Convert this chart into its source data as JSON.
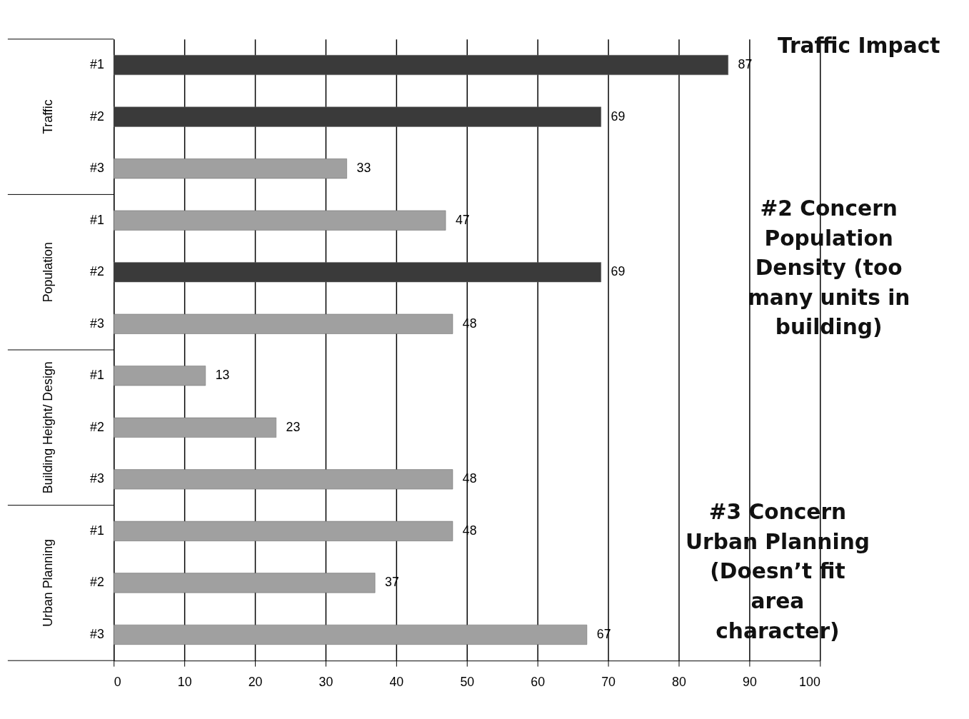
{
  "chart_data": {
    "type": "bar",
    "orientation": "horizontal",
    "categories": [
      "#1",
      "#2",
      "#3",
      "#1",
      "#2",
      "#3",
      "#1",
      "#2",
      "#3",
      "#1",
      "#2",
      "#3"
    ],
    "values": [
      87,
      69,
      33,
      47,
      69,
      48,
      13,
      23,
      48,
      48,
      37,
      67
    ],
    "colors": [
      "#3a3a3a",
      "#3a3a3a",
      "#a0a0a0",
      "#a0a0a0",
      "#3a3a3a",
      "#a0a0a0",
      "#a0a0a0",
      "#a0a0a0",
      "#a0a0a0",
      "#a0a0a0",
      "#a0a0a0",
      "#a0a0a0"
    ],
    "data_labels": true,
    "xlim": [
      0,
      100
    ],
    "xticks": [
      0,
      10,
      20,
      30,
      40,
      50,
      60,
      70,
      80,
      90,
      100
    ],
    "grid": "x",
    "annotations": [
      "Traffic",
      "Population",
      "Building Height/ Design",
      "Urban Planning",
      "Traffic Impact",
      "#2 Concern Population Density (too many units in building)",
      "#3 Concern Urban Planning (Doesn’t fit area character)"
    ]
  }
}
